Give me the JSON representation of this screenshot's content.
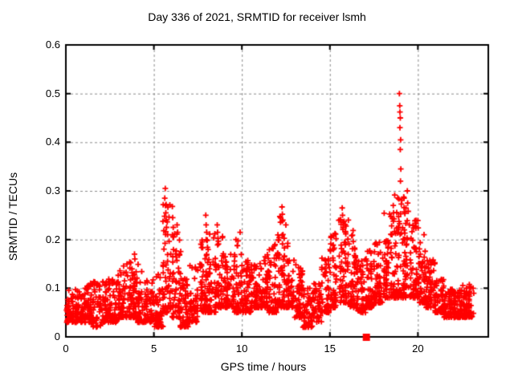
{
  "window": {
    "background": "#ffffff"
  },
  "chart_data": {
    "type": "scatter",
    "title": "Day 336 of 2021, SRMTID for receiver lsmh",
    "xlabel": "GPS time / hours",
    "ylabel": "SRMTID / TECUs",
    "xlim": [
      0,
      24
    ],
    "ylim": [
      0,
      0.6
    ],
    "xticks": [
      0,
      5,
      10,
      15,
      20
    ],
    "xtick_labels": [
      "0",
      "5",
      "10",
      "15",
      "20"
    ],
    "yticks": [
      0,
      0.1,
      0.2,
      0.3,
      0.4,
      0.5,
      0.6
    ],
    "ytick_labels": [
      "0",
      "0.1",
      "0.2",
      "0.3",
      "0.4",
      "0.5",
      "0.6"
    ],
    "grid": true,
    "legend_position": "none",
    "marker": "plus",
    "marker_color": "#ff0000",
    "grid_color": "#8c8c8c",
    "axis_color": "#000000",
    "series_name": "SRMTID",
    "envelope_note": "segments of [hour_start, hour_end, y_min, y_max, point_count] read from the plot; dense band hugs y_min with sparse tail toward y_max",
    "envelope": [
      [
        0.0,
        0.5,
        0.03,
        0.1,
        55
      ],
      [
        0.5,
        1.0,
        0.03,
        0.1,
        55
      ],
      [
        1.0,
        1.5,
        0.03,
        0.11,
        55
      ],
      [
        1.5,
        2.0,
        0.02,
        0.12,
        55
      ],
      [
        2.0,
        2.5,
        0.03,
        0.12,
        55
      ],
      [
        2.5,
        3.0,
        0.03,
        0.13,
        55
      ],
      [
        3.0,
        3.5,
        0.04,
        0.15,
        55
      ],
      [
        3.5,
        4.0,
        0.04,
        0.16,
        55
      ],
      [
        4.0,
        4.5,
        0.03,
        0.15,
        55
      ],
      [
        4.5,
        5.0,
        0.03,
        0.12,
        55
      ],
      [
        5.0,
        5.5,
        0.02,
        0.13,
        55
      ],
      [
        5.5,
        6.0,
        0.05,
        0.29,
        62
      ],
      [
        6.0,
        6.5,
        0.04,
        0.22,
        60
      ],
      [
        6.5,
        7.0,
        0.02,
        0.12,
        55
      ],
      [
        7.0,
        7.5,
        0.03,
        0.15,
        55
      ],
      [
        7.5,
        8.0,
        0.05,
        0.21,
        55
      ],
      [
        8.0,
        8.5,
        0.05,
        0.22,
        55
      ],
      [
        8.5,
        9.0,
        0.06,
        0.21,
        55
      ],
      [
        9.0,
        9.5,
        0.06,
        0.17,
        55
      ],
      [
        9.5,
        10.0,
        0.05,
        0.2,
        55
      ],
      [
        10.0,
        10.5,
        0.05,
        0.16,
        55
      ],
      [
        10.5,
        11.0,
        0.06,
        0.16,
        55
      ],
      [
        11.0,
        11.5,
        0.06,
        0.17,
        55
      ],
      [
        11.5,
        12.0,
        0.05,
        0.19,
        55
      ],
      [
        12.0,
        12.5,
        0.06,
        0.25,
        62
      ],
      [
        12.5,
        13.0,
        0.06,
        0.21,
        55
      ],
      [
        13.0,
        13.5,
        0.04,
        0.15,
        55
      ],
      [
        13.5,
        14.0,
        0.02,
        0.1,
        48
      ],
      [
        14.0,
        14.5,
        0.03,
        0.11,
        48
      ],
      [
        14.5,
        15.0,
        0.05,
        0.17,
        55
      ],
      [
        15.0,
        15.5,
        0.06,
        0.22,
        55
      ],
      [
        15.5,
        16.0,
        0.07,
        0.26,
        62
      ],
      [
        16.0,
        16.5,
        0.06,
        0.23,
        58
      ],
      [
        16.5,
        17.0,
        0.05,
        0.16,
        55
      ],
      [
        17.0,
        17.5,
        0.06,
        0.18,
        55
      ],
      [
        17.5,
        18.0,
        0.07,
        0.2,
        55
      ],
      [
        18.0,
        18.5,
        0.08,
        0.26,
        58
      ],
      [
        18.5,
        19.0,
        0.08,
        0.3,
        62
      ],
      [
        19.0,
        19.5,
        0.08,
        0.29,
        62
      ],
      [
        19.5,
        20.0,
        0.08,
        0.24,
        58
      ],
      [
        20.0,
        20.5,
        0.07,
        0.2,
        55
      ],
      [
        20.5,
        21.0,
        0.06,
        0.16,
        55
      ],
      [
        21.0,
        21.5,
        0.05,
        0.12,
        55
      ],
      [
        21.5,
        22.0,
        0.04,
        0.1,
        55
      ],
      [
        22.0,
        22.5,
        0.04,
        0.1,
        55
      ],
      [
        22.5,
        23.2,
        0.04,
        0.11,
        72
      ]
    ],
    "outliers": [
      [
        3.9,
        0.17
      ],
      [
        3.92,
        0.16
      ],
      [
        5.62,
        0.285
      ],
      [
        5.65,
        0.305
      ],
      [
        5.66,
        0.27
      ],
      [
        5.68,
        0.255
      ],
      [
        5.7,
        0.24
      ],
      [
        5.72,
        0.225
      ],
      [
        5.78,
        0.21
      ],
      [
        6.05,
        0.268
      ],
      [
        6.07,
        0.245
      ],
      [
        6.1,
        0.225
      ],
      [
        6.12,
        0.205
      ],
      [
        6.32,
        0.23
      ],
      [
        6.35,
        0.215
      ],
      [
        7.95,
        0.25
      ],
      [
        7.97,
        0.23
      ],
      [
        8.0,
        0.215
      ],
      [
        8.6,
        0.23
      ],
      [
        8.62,
        0.215
      ],
      [
        9.9,
        0.215
      ],
      [
        12.28,
        0.267
      ],
      [
        12.3,
        0.252
      ],
      [
        12.33,
        0.24
      ],
      [
        12.5,
        0.23
      ],
      [
        15.7,
        0.265
      ],
      [
        15.72,
        0.25
      ],
      [
        15.75,
        0.235
      ],
      [
        16.05,
        0.24
      ],
      [
        18.6,
        0.27
      ],
      [
        18.62,
        0.255
      ],
      [
        18.95,
        0.5
      ],
      [
        18.97,
        0.475
      ],
      [
        18.98,
        0.462
      ],
      [
        19.0,
        0.45
      ],
      [
        18.98,
        0.43
      ],
      [
        19.02,
        0.405
      ],
      [
        19.0,
        0.385
      ],
      [
        19.03,
        0.345
      ],
      [
        19.01,
        0.32
      ],
      [
        19.4,
        0.3
      ],
      [
        19.42,
        0.275
      ],
      [
        19.45,
        0.258
      ],
      [
        20.35,
        0.21
      ]
    ],
    "flag_point": {
      "x": 17.05,
      "y": 0.0,
      "marker": "filled-square",
      "color": "#ff0000"
    }
  }
}
